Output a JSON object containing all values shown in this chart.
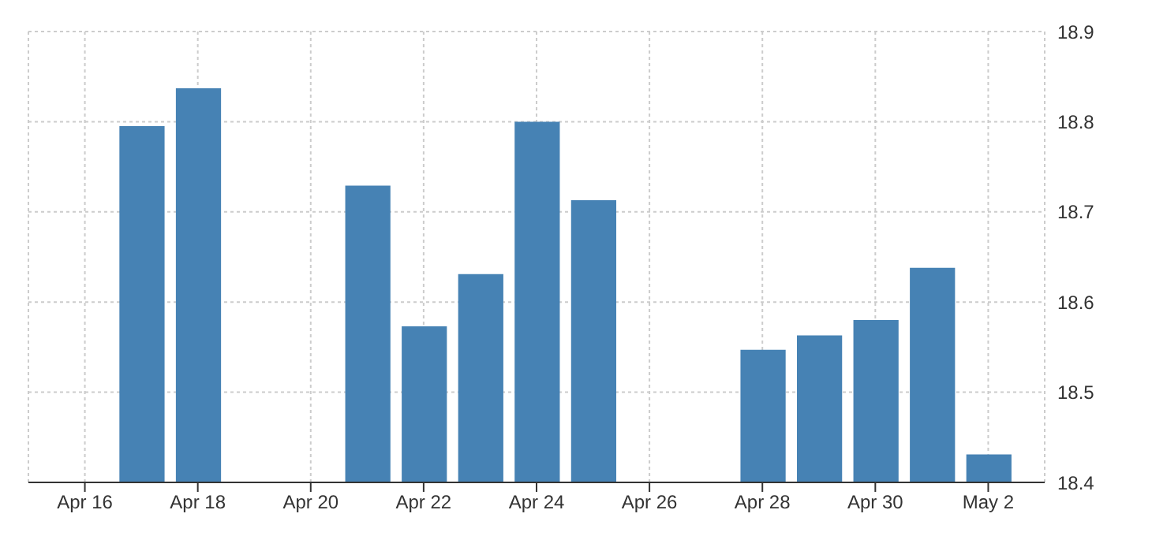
{
  "chart_data": {
    "type": "bar",
    "x": [
      "--04-17",
      "--04-18",
      "--04-21",
      "--04-22",
      "--04-23",
      "--04-24",
      "--04-25",
      "--04-28",
      "--04-29",
      "--04-30",
      "--05-01",
      "--05-02"
    ],
    "values": [
      18.795,
      18.837,
      18.729,
      18.573,
      18.631,
      18.8,
      18.713,
      18.547,
      18.563,
      18.58,
      18.638,
      18.431
    ],
    "color": "#4682b4",
    "xlim": [
      "--04-15",
      "--05-03"
    ],
    "xticks": [
      {
        "value": "--04-16",
        "label": "Apr 16"
      },
      {
        "value": "--04-18",
        "label": "Apr 18"
      },
      {
        "value": "--04-20",
        "label": "Apr 20"
      },
      {
        "value": "--04-22",
        "label": "Apr 22"
      },
      {
        "value": "--04-24",
        "label": "Apr 24"
      },
      {
        "value": "--04-26",
        "label": "Apr 26"
      },
      {
        "value": "--04-28",
        "label": "Apr 28"
      },
      {
        "value": "--04-30",
        "label": "Apr 30"
      },
      {
        "value": "--05-02",
        "label": "May 2"
      }
    ],
    "ylim": [
      18.4,
      18.9
    ],
    "yticks": [
      18.4,
      18.5,
      18.6,
      18.7,
      18.8,
      18.9
    ],
    "grid": true
  }
}
